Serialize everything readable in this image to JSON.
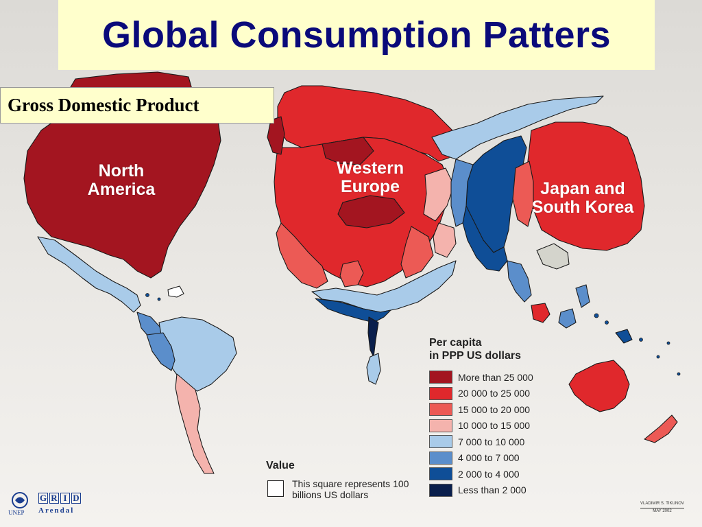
{
  "title": "Global Consumption Patters",
  "subtitle": "Gross Domestic Product",
  "colors": {
    "more_than_25000": "#a31520",
    "c20000_25000": "#e0282c",
    "c15000_20000": "#ec5a55",
    "c10000_15000": "#f4b3ad",
    "c7000_10000": "#a9cbe9",
    "c4000_7000": "#5b8ecb",
    "c2000_4000": "#0f4e97",
    "less_than_2000": "#0a1f4c",
    "no_data": "#d4d4cc"
  },
  "region_labels": {
    "north_america": "North America",
    "western_europe": "Western Europe",
    "japan_korea": "Japan and South Korea"
  },
  "legend": {
    "title": "Per capita\nin PPP US dollars",
    "items": [
      {
        "label": "More than 25 000",
        "color": "#a31520"
      },
      {
        "label": "20 000 to 25 000",
        "color": "#e0282c"
      },
      {
        "label": "15 000 to 20 000",
        "color": "#ec5a55"
      },
      {
        "label": "10 000 to 15 000",
        "color": "#f4b3ad"
      },
      {
        "label": "7 000 to 10 000",
        "color": "#a9cbe9"
      },
      {
        "label": "4 000 to 7 000",
        "color": "#5b8ecb"
      },
      {
        "label": "2 000 to 4 000",
        "color": "#0f4e97"
      },
      {
        "label": "Less than 2 000",
        "color": "#0a1f4c"
      }
    ]
  },
  "value_key": {
    "title": "Value",
    "text": "This square represents 100 billions US dollars"
  },
  "credit": {
    "author": "VLADIMIR S. TIKUNOV",
    "date": "MAY 2002"
  },
  "logos": {
    "unep": "UNEP",
    "grid_letters": [
      "G",
      "R",
      "I",
      "D"
    ],
    "arendal": "Arendal"
  }
}
